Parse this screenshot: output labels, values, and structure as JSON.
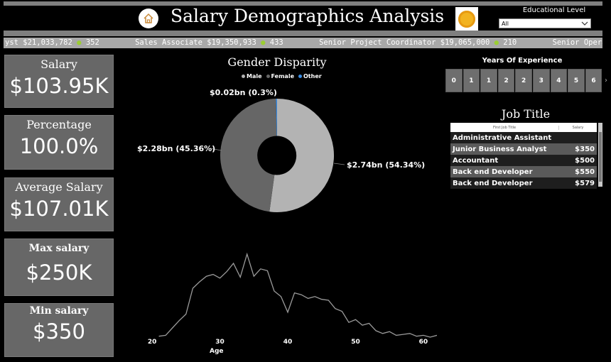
{
  "header": {
    "title": "Salary Demographics Analysis",
    "home_icon": "home-icon",
    "logo_icon": "coin-icon"
  },
  "slicer": {
    "label": "Educational Level",
    "selected": "All"
  },
  "ticker": {
    "items": [
      {
        "text": "yst $21,033,782",
        "count": "352"
      },
      {
        "text": "Sales Associate $19,350,933",
        "count": "433"
      },
      {
        "text": "Senior Project Coordinator $19,065,000",
        "count": "210"
      },
      {
        "text": "Senior Operations",
        "count": ""
      }
    ]
  },
  "cards": [
    {
      "label": "Salary",
      "value": "$103.95K"
    },
    {
      "label": "Percentage",
      "value": "100.0%"
    },
    {
      "label": "Average Salary",
      "value": "$107.01K"
    },
    {
      "label": "Max salary",
      "value": "$250K"
    },
    {
      "label": "Min salary",
      "value": "$350"
    }
  ],
  "gender": {
    "title": "Gender Disparity",
    "legend": [
      {
        "name": "Male",
        "color": "#b3b3b3"
      },
      {
        "name": "Female",
        "color": "#666666"
      },
      {
        "name": "Other",
        "color": "#3a8ee6"
      }
    ],
    "labels": {
      "male": "$2.74bn (54.34%)",
      "female": "$2.28bn (45.36%)",
      "other": "$0.02bn (0.3%)"
    }
  },
  "experience": {
    "title": "Years Of Experience",
    "values": [
      "0",
      "1",
      "1",
      "2",
      "2",
      "3",
      "4",
      "5",
      "6"
    ]
  },
  "jobs": {
    "title": "Job Title",
    "col_job": "First Job Title",
    "col_salary": "Salary",
    "rows": [
      {
        "job": "Administrative Assistant",
        "salary": ""
      },
      {
        "job": "Junior Business Analyst",
        "salary": "$350"
      },
      {
        "job": "Accountant",
        "salary": "$500"
      },
      {
        "job": "Back end Developer",
        "salary": "$550"
      },
      {
        "job": "Back end Developer",
        "salary": "$579"
      }
    ]
  },
  "chart_data": {
    "type": "line",
    "title": "",
    "xlabel": "Age",
    "ylabel": "",
    "xlim": [
      18,
      62
    ],
    "ylim": [
      0,
      100
    ],
    "xticks": [
      "20",
      "30",
      "40",
      "50",
      "60"
    ],
    "xtick_values": [
      20,
      30,
      40,
      50,
      60
    ],
    "series": [
      {
        "color": "#9a9a9a",
        "x": [
          21,
          22,
          23,
          24,
          25,
          26,
          27,
          28,
          29,
          30,
          31,
          32,
          33,
          34,
          35,
          36,
          37,
          38,
          39,
          40,
          41,
          42,
          43,
          44,
          45,
          46,
          47,
          48,
          49,
          50,
          51,
          52,
          53,
          54,
          55,
          56,
          57,
          58,
          59,
          60,
          61,
          62
        ],
        "y": [
          1,
          2,
          10,
          18,
          25,
          53,
          60,
          66,
          68,
          64,
          71,
          80,
          65,
          90,
          66,
          74,
          72,
          50,
          44,
          27,
          48,
          46,
          42,
          44,
          41,
          40,
          31,
          28,
          16,
          19,
          13,
          15,
          7,
          4,
          6,
          2,
          3,
          4,
          1,
          2,
          0,
          2
        ]
      }
    ]
  }
}
